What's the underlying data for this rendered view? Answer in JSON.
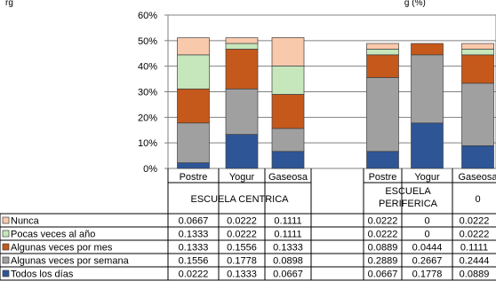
{
  "title": {
    "left": "rg",
    "right": "g (%)"
  },
  "chart_data": {
    "type": "bar",
    "stacked": true,
    "yaxis": {
      "min": 0,
      "max": 0.6,
      "ticks": [
        "0%",
        "10%",
        "20%",
        "30%",
        "40%",
        "50%",
        "60%"
      ],
      "grid": true
    },
    "groups": [
      {
        "label": "ESCUELA CENTRICA",
        "categories": [
          "Postre",
          "Yogur",
          "Gaseosa"
        ]
      },
      {
        "label": "ESCUELA PERIFERICA",
        "categories": [
          "Postre",
          "Yogur",
          "Gaseosa"
        ],
        "extra": "0"
      }
    ],
    "series": [
      {
        "name": "Todos los días",
        "color": "#2e5596",
        "values": [
          0.0222,
          0.1333,
          0.0667,
          0.0667,
          0.1778,
          0.0889
        ]
      },
      {
        "name": "Algunas veces por semana",
        "color": "#a0a0a0",
        "values": [
          0.1556,
          0.1778,
          0.0898,
          0.2889,
          0.2667,
          0.2444
        ]
      },
      {
        "name": "Algunas veces por mes",
        "color": "#c5581b",
        "values": [
          0.1333,
          0.1556,
          0.1333,
          0.0889,
          0.0444,
          0.1111
        ]
      },
      {
        "name": "Pocas veces al año",
        "color": "#c6e7bb",
        "values": [
          0.1333,
          0.0222,
          0.1111,
          0.0222,
          0,
          0.0222
        ]
      },
      {
        "name": "Nunca",
        "color": "#f9c9ac",
        "values": [
          0.0667,
          0.0222,
          0.1111,
          0.0222,
          0,
          0.0222
        ]
      }
    ],
    "table_rows": [
      {
        "name": "Nunca",
        "cells": [
          "0.0667",
          "0.0222",
          "0.1111",
          "0.0222",
          "0",
          "0.0222"
        ]
      },
      {
        "name": "Pocas veces al año",
        "cells": [
          "0.1333",
          "0.0222",
          "0.1111",
          "0.0222",
          "0",
          "0.0222"
        ]
      },
      {
        "name": "Algunas veces por mes",
        "cells": [
          "0.1333",
          "0.1556",
          "0.1333",
          "0.0889",
          "0.0444",
          "0.1111"
        ]
      },
      {
        "name": "Algunas veces por semana",
        "cells": [
          "0.1556",
          "0.1778",
          "0.0898",
          "0.2889",
          "0.2667",
          "0.2444"
        ]
      },
      {
        "name": "Todos los días",
        "cells": [
          "0.0222",
          "0.1333",
          "0.0667",
          "0.0667",
          "0.1778",
          "0.0889"
        ]
      }
    ]
  }
}
